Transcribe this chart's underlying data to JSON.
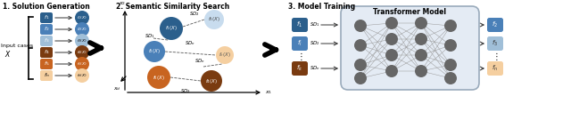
{
  "section1_title": "1. Solution Generation",
  "section2_title": "2. Semantic Similarity Search",
  "section3_title": "3. Model Training",
  "dark_blue": "#2B5F8C",
  "mid_blue": "#4A80B8",
  "light_blue": "#A0BFD8",
  "very_light_blue": "#C8DCEE",
  "dark_brown": "#7A3B10",
  "mid_orange": "#C86420",
  "light_orange": "#E8A050",
  "very_light_orange": "#F5CFA0",
  "node_gray": "#666666",
  "transformer_bg": "#E4EBF4",
  "transformer_border": "#99AABB",
  "background": "#FFFFFF"
}
